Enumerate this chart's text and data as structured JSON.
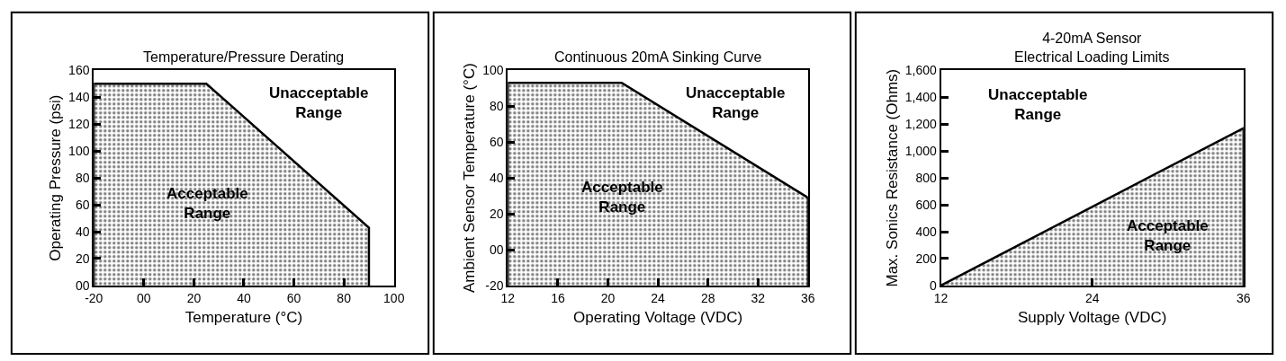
{
  "chart_data": [
    {
      "type": "area",
      "title": "Temperature/Pressure Derating",
      "xlabel": "Temperature (°C)",
      "ylabel": "Operating Pressure (psi)",
      "color": "#000000",
      "x": [
        -20,
        -20,
        25,
        90,
        90
      ],
      "values": [
        0,
        150,
        150,
        43,
        0
      ],
      "xlim": [
        -20,
        100
      ],
      "xticks": [
        -20,
        {
          "value": 0,
          "label": "00"
        },
        20,
        40,
        60,
        80,
        100
      ],
      "ylim": [
        0,
        160
      ],
      "yticks": [
        {
          "value": 0,
          "label": "00"
        },
        20,
        40,
        60,
        80,
        100,
        120,
        140,
        160
      ],
      "annotations": [
        "Unacceptable\nRange",
        "Acceptable\nRange"
      ]
    },
    {
      "type": "area",
      "title": "Continuous 20mA Sinking Curve",
      "xlabel": "Operating Voltage (VDC)",
      "ylabel": "Ambient Sensor Temperature (°C)",
      "color": "#000000",
      "x": [
        12,
        12,
        21.1,
        36,
        36
      ],
      "values": [
        -20,
        93,
        93,
        29,
        -20
      ],
      "xlim": [
        12,
        36
      ],
      "xticks": [
        12,
        16,
        20,
        24,
        28,
        32,
        36
      ],
      "ylim": [
        -20,
        100
      ],
      "yticks": [
        -20,
        {
          "value": 0,
          "label": "00"
        },
        20,
        40,
        60,
        80,
        100
      ],
      "annotations": [
        "Unacceptable\nRange",
        "Acceptable\nRange"
      ]
    },
    {
      "type": "area",
      "title": "4-20mA Sensor\nElectrical Loading Limits",
      "xlabel": "Supply Voltage (VDC)",
      "ylabel": "Max. Sonics Resistance (Ohms)",
      "color": "#000000",
      "x": [
        12,
        36,
        36
      ],
      "values": [
        0,
        1170,
        0
      ],
      "xlim": [
        12,
        36
      ],
      "xticks": [
        12,
        24,
        36
      ],
      "ylim": [
        0,
        1600
      ],
      "yticks": [
        0,
        {
          "value": 200,
          "label": "200"
        },
        {
          "value": 400,
          "label": "400"
        },
        {
          "value": 600,
          "label": "600"
        },
        {
          "value": 800,
          "label": "800"
        },
        {
          "value": 1000,
          "label": "1,000"
        },
        {
          "value": 1200,
          "label": "1,200"
        },
        {
          "value": 1400,
          "label": "1,400"
        },
        {
          "value": 1600,
          "label": "1,600"
        }
      ],
      "annotations": [
        "Unacceptable\nRange",
        "Acceptable\nRange"
      ]
    }
  ]
}
